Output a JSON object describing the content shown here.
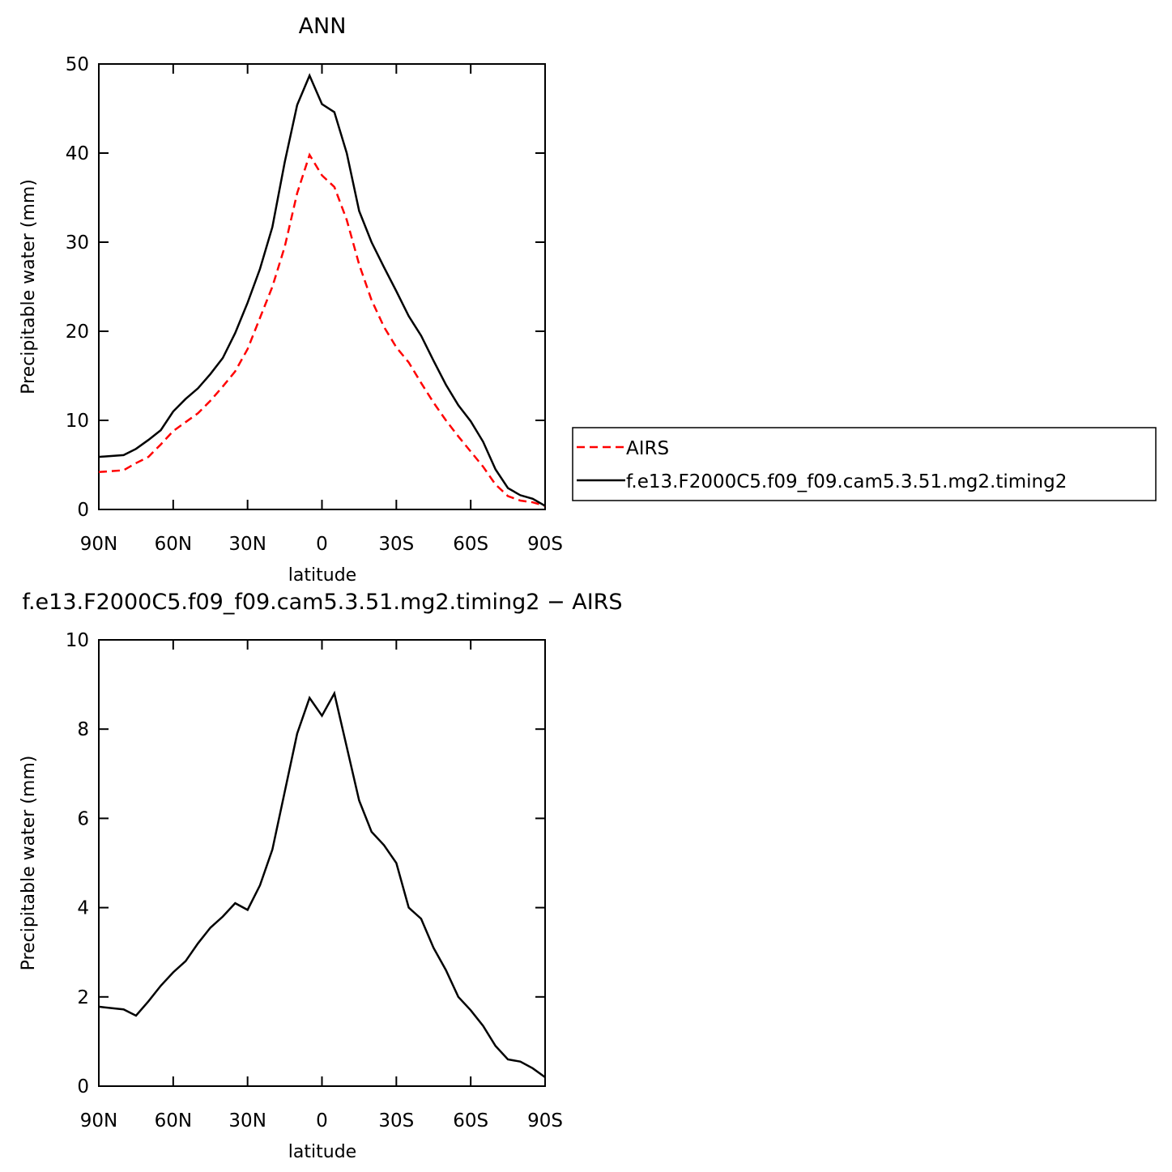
{
  "chart_data": [
    {
      "type": "line",
      "title": "ANN",
      "xlabel": "latitude",
      "ylabel": "Precipitable water (mm)",
      "x": [
        90,
        85,
        80,
        75,
        70,
        65,
        60,
        55,
        50,
        45,
        40,
        35,
        30,
        25,
        20,
        15,
        10,
        5,
        0,
        -5,
        -10,
        -15,
        -20,
        -25,
        -30,
        -35,
        -40,
        -45,
        -50,
        -55,
        -60,
        -65,
        -70,
        -75,
        -80,
        -85,
        -90
      ],
      "xlim": [
        90,
        -90
      ],
      "xticks": [
        {
          "value": 90,
          "label": "90N"
        },
        {
          "value": 60,
          "label": "60N"
        },
        {
          "value": 30,
          "label": "30N"
        },
        0,
        {
          "value": -30,
          "label": "30S"
        },
        {
          "value": -60,
          "label": "60S"
        },
        {
          "value": -90,
          "label": "90S"
        }
      ],
      "ylim": [
        0,
        50
      ],
      "yticks": [
        0,
        10,
        20,
        30,
        40,
        50
      ],
      "series": [
        {
          "name": "AIRS",
          "color": "#ff0000",
          "dash": true,
          "values": [
            4.2,
            4.3,
            4.4,
            5.2,
            5.9,
            7.3,
            8.8,
            9.8,
            10.8,
            12.2,
            13.8,
            15.5,
            18.0,
            21.5,
            25.0,
            29.5,
            35.5,
            39.8,
            37.5,
            36.2,
            32.5,
            27.5,
            23.5,
            20.5,
            18.2,
            16.5,
            14.2,
            12.0,
            10.0,
            8.2,
            6.5,
            4.8,
            2.8,
            1.5,
            1.0,
            0.8,
            0.4
          ]
        },
        {
          "name": "f.e13.F2000C5.f09_f09.cam5.3.51.mg2.timing2",
          "color": "#000000",
          "dash": false,
          "values": [
            5.9,
            6.0,
            6.1,
            6.8,
            7.8,
            8.9,
            11.0,
            12.4,
            13.6,
            15.2,
            17.0,
            19.8,
            23.2,
            27.0,
            31.7,
            39.0,
            45.4,
            48.7,
            45.5,
            44.6,
            40.0,
            33.5,
            30.0,
            27.2,
            24.5,
            21.7,
            19.5,
            16.7,
            14.0,
            11.7,
            9.9,
            7.6,
            4.5,
            2.4,
            1.6,
            1.2,
            0.4
          ]
        }
      ]
    },
    {
      "type": "line",
      "title": "f.e13.F2000C5.f09_f09.cam5.3.51.mg2.timing2 − AIRS",
      "xlabel": "latitude",
      "ylabel": "Precipitable water (mm)",
      "x": [
        90,
        85,
        80,
        75,
        70,
        65,
        60,
        55,
        50,
        45,
        40,
        35,
        30,
        25,
        20,
        15,
        10,
        5,
        0,
        -5,
        -10,
        -15,
        -20,
        -25,
        -30,
        -35,
        -40,
        -45,
        -50,
        -55,
        -60,
        -65,
        -70,
        -75,
        -80,
        -85,
        -90
      ],
      "xlim": [
        90,
        -90
      ],
      "xticks": [
        {
          "value": 90,
          "label": "90N"
        },
        {
          "value": 60,
          "label": "60N"
        },
        {
          "value": 30,
          "label": "30N"
        },
        0,
        {
          "value": -30,
          "label": "30S"
        },
        {
          "value": -60,
          "label": "60S"
        },
        {
          "value": -90,
          "label": "90S"
        }
      ],
      "ylim": [
        0,
        10
      ],
      "yticks": [
        0,
        2,
        4,
        6,
        8,
        10
      ],
      "color": "#000000",
      "values": [
        1.78,
        1.75,
        1.72,
        1.58,
        1.9,
        2.25,
        2.55,
        2.8,
        3.2,
        3.55,
        3.8,
        4.1,
        3.95,
        4.5,
        5.3,
        6.6,
        7.9,
        8.7,
        8.3,
        8.8,
        7.6,
        6.4,
        5.7,
        5.4,
        5.0,
        4.0,
        3.75,
        3.1,
        2.6,
        2.0,
        1.7,
        1.35,
        0.9,
        0.6,
        0.55,
        0.4,
        0.2
      ]
    }
  ]
}
